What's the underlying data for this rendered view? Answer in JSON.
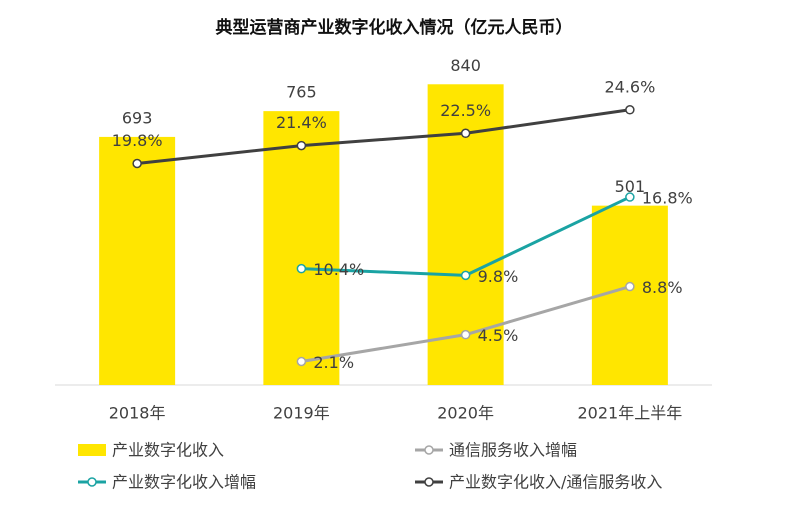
{
  "chart_data": {
    "type": "combo",
    "title": "典型运营商产业数字化收入情况（亿元人民币）",
    "categories": [
      "2018年",
      "2019年",
      "2020年",
      "2021年上半年"
    ],
    "ylim": [
      0,
      1000
    ],
    "y2lim": [
      0,
      32
    ],
    "series": [
      {
        "name": "产业数字化收入",
        "type": "bar",
        "color": "#ffe600",
        "values": [
          693,
          765,
          840,
          501
        ]
      },
      {
        "name": "通信服务收入增幅",
        "type": "line",
        "axis": "y2",
        "color": "#a6a6a6",
        "values": [
          null,
          2.1,
          4.5,
          8.8
        ],
        "value_labels": [
          null,
          "2.1%",
          "4.5%",
          "8.8%"
        ]
      },
      {
        "name": "产业数字化收入增幅",
        "type": "line",
        "axis": "y2",
        "color": "#1aa3a3",
        "values": [
          null,
          10.4,
          9.8,
          16.8
        ],
        "value_labels": [
          null,
          "10.4%",
          "9.8%",
          "16.8%"
        ]
      },
      {
        "name": "产业数字化收入/通信服务收入",
        "type": "line",
        "axis": "y2",
        "color": "#404040",
        "values": [
          19.8,
          21.4,
          22.5,
          24.6
        ],
        "value_labels": [
          "19.8%",
          "21.4%",
          "22.5%",
          "24.6%"
        ]
      }
    ]
  }
}
